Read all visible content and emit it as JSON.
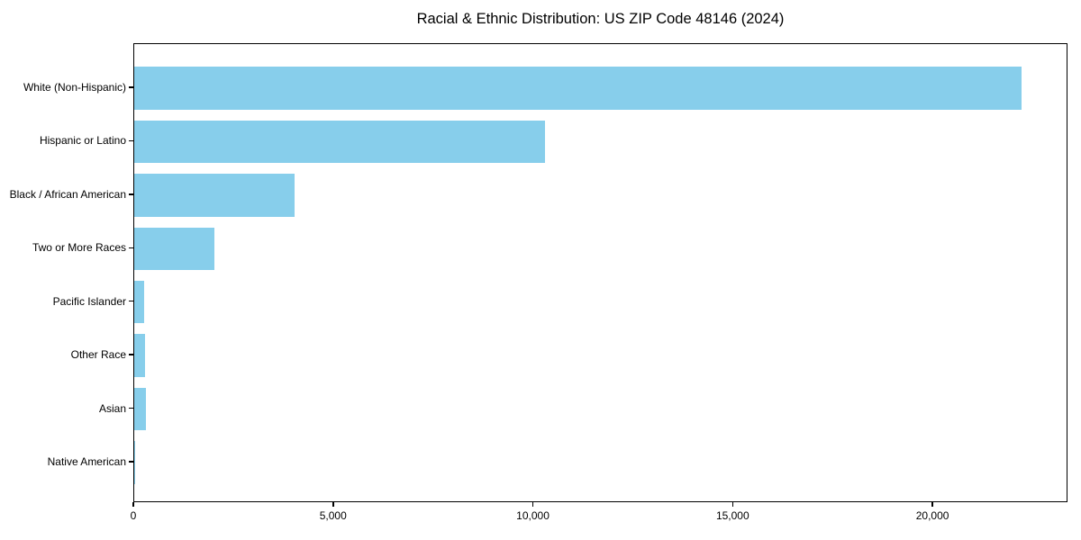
{
  "chart_data": {
    "type": "bar",
    "orientation": "horizontal",
    "title": "Racial & Ethnic Distribution: US ZIP Code 48146 (2024)",
    "categories": [
      "White (Non-Hispanic)",
      "Hispanic or Latino",
      "Black / African American",
      "Two or More Races",
      "Pacific Islander",
      "Other Race",
      "Asian",
      "Native American"
    ],
    "values": [
      22250,
      10290,
      4020,
      2000,
      255,
      275,
      290,
      25
    ],
    "xlabel": "",
    "ylabel": "",
    "xlim": [
      0,
      23380
    ],
    "x_ticks": [
      0,
      5000,
      10000,
      15000,
      20000
    ],
    "x_tick_labels": [
      "0",
      "5,000",
      "10,000",
      "15,000",
      "20,000"
    ],
    "bar_color": "#87CEEB",
    "grid": false,
    "legend_position": "none",
    "background_color": "#ffffff",
    "text_color": "#000000"
  }
}
